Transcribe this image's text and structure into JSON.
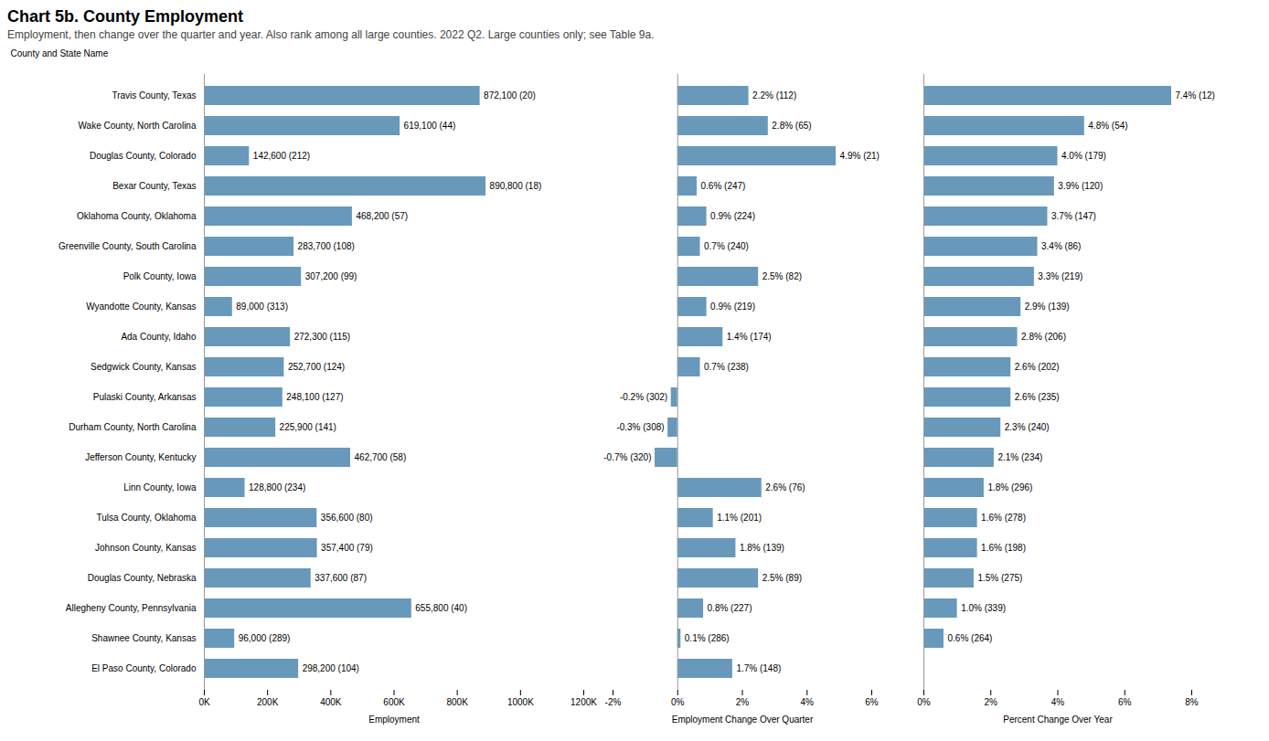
{
  "chart_data": [
    {
      "type": "bar",
      "title": "Chart 5b. County Employment",
      "subtitle": "Employment, then change over the quarter and year. Also rank among all large counties. 2022 Q2. Large counties only; see Table 9a.",
      "orientation": "horizontal",
      "x_label": "Employment",
      "y_label": "County and State Name",
      "categories": [
        "Travis County, Texas",
        "Wake County, North Carolina",
        "Douglas County, Colorado",
        "Bexar County, Texas",
        "Oklahoma County, Oklahoma",
        "Greenville County, South Carolina",
        "Polk County, Iowa",
        "Wyandotte County, Kansas",
        "Ada County, Idaho",
        "Sedgwick County, Kansas",
        "Pulaski County, Arkansas",
        "Durham County, North Carolina",
        "Jefferson County, Kentucky",
        "Linn County, Iowa",
        "Tulsa County, Oklahoma",
        "Johnson County, Kansas",
        "Douglas County, Nebraska",
        "Allegheny County, Pennsylvania",
        "Shawnee County, Kansas",
        "El Paso County, Colorado"
      ],
      "values": [
        872100,
        619100,
        142600,
        890800,
        468200,
        283700,
        307200,
        89000,
        272300,
        252700,
        248100,
        225900,
        462700,
        128800,
        356600,
        357400,
        337600,
        655800,
        96000,
        298200
      ],
      "value_labels": [
        "872,100 (20)",
        "619,100 (44)",
        "142,600 (212)",
        "890,800 (18)",
        "468,200 (57)",
        "283,700 (108)",
        "307,200 (99)",
        "89,000 (313)",
        "272,300 (115)",
        "252,700 (124)",
        "248,100 (127)",
        "225,900 (141)",
        "462,700 (58)",
        "128,800 (234)",
        "356,600 (80)",
        "357,400 (79)",
        "337,600 (87)",
        "655,800 (40)",
        "96,000 (289)",
        "298,200 (104)"
      ],
      "data_labels": true,
      "color": "#6899bb",
      "xlim": [
        0,
        1200000
      ],
      "xticks": [
        {
          "value": 0,
          "label": "0K"
        },
        {
          "value": 200000,
          "label": "200K"
        },
        {
          "value": 400000,
          "label": "400K"
        },
        {
          "value": 600000,
          "label": "600K"
        },
        {
          "value": 800000,
          "label": "800K"
        },
        {
          "value": 1000000,
          "label": "1000K"
        },
        {
          "value": 1200000,
          "label": "1200K"
        }
      ],
      "grid": false
    },
    {
      "type": "bar",
      "orientation": "horizontal",
      "x_label": "Employment Change Over Quarter",
      "tick_labels": "x",
      "categories": [
        "Travis County, Texas",
        "Wake County, North Carolina",
        "Douglas County, Colorado",
        "Bexar County, Texas",
        "Oklahoma County, Oklahoma",
        "Greenville County, South Carolina",
        "Polk County, Iowa",
        "Wyandotte County, Kansas",
        "Ada County, Idaho",
        "Sedgwick County, Kansas",
        "Pulaski County, Arkansas",
        "Durham County, North Carolina",
        "Jefferson County, Kentucky",
        "Linn County, Iowa",
        "Tulsa County, Oklahoma",
        "Johnson County, Kansas",
        "Douglas County, Nebraska",
        "Allegheny County, Pennsylvania",
        "Shawnee County, Kansas",
        "El Paso County, Colorado"
      ],
      "values": [
        2.2,
        2.8,
        4.9,
        0.6,
        0.9,
        0.7,
        2.5,
        0.9,
        1.4,
        0.7,
        -0.2,
        -0.3,
        -0.7,
        2.6,
        1.1,
        1.8,
        2.5,
        0.8,
        0.1,
        1.7
      ],
      "value_labels": [
        "2.2% (112)",
        "2.8% (65)",
        "4.9% (21)",
        "0.6% (247)",
        "0.9% (224)",
        "0.7% (240)",
        "2.5% (82)",
        "0.9% (219)",
        "1.4% (174)",
        "0.7% (238)",
        "-0.2% (302)",
        "-0.3% (308)",
        "-0.7% (320)",
        "2.6% (76)",
        "1.1% (201)",
        "1.8% (139)",
        "2.5% (89)",
        "0.8% (227)",
        "0.1% (286)",
        "1.7% (148)"
      ],
      "data_labels": true,
      "color": "#6899bb",
      "xlim": [
        -2,
        6
      ],
      "xticks": [
        {
          "value": -2,
          "label": "-2%"
        },
        {
          "value": 0,
          "label": "0%"
        },
        {
          "value": 2,
          "label": "2%"
        },
        {
          "value": 4,
          "label": "4%"
        },
        {
          "value": 6,
          "label": "6%"
        }
      ],
      "grid": false
    },
    {
      "type": "bar",
      "orientation": "horizontal",
      "x_label": "Percent Change Over Year",
      "tick_labels": "x",
      "categories": [
        "Travis County, Texas",
        "Wake County, North Carolina",
        "Douglas County, Colorado",
        "Bexar County, Texas",
        "Oklahoma County, Oklahoma",
        "Greenville County, South Carolina",
        "Polk County, Iowa",
        "Wyandotte County, Kansas",
        "Ada County, Idaho",
        "Sedgwick County, Kansas",
        "Pulaski County, Arkansas",
        "Durham County, North Carolina",
        "Jefferson County, Kentucky",
        "Linn County, Iowa",
        "Tulsa County, Oklahoma",
        "Johnson County, Kansas",
        "Douglas County, Nebraska",
        "Allegheny County, Pennsylvania",
        "Shawnee County, Kansas",
        "El Paso County, Colorado"
      ],
      "values": [
        7.4,
        4.8,
        4.0,
        3.9,
        3.7,
        3.4,
        3.3,
        2.9,
        2.8,
        2.6,
        2.6,
        2.3,
        2.1,
        1.8,
        1.6,
        1.6,
        1.5,
        1.0,
        0.6,
        null
      ],
      "value_labels": [
        "7.4% (12)",
        "4.8% (54)",
        "4.0% (179)",
        "3.9% (120)",
        "3.7% (147)",
        "3.4% (86)",
        "3.3% (219)",
        "2.9% (139)",
        "2.8% (206)",
        "2.6% (202)",
        "2.6% (235)",
        "2.3% (240)",
        "2.1% (234)",
        "1.8% (296)",
        "1.6% (278)",
        "1.6% (198)",
        "1.5% (275)",
        "1.0% (339)",
        "0.6% (264)",
        null
      ],
      "data_labels": true,
      "color": "#6899bb",
      "xlim": [
        0,
        8
      ],
      "xticks": [
        {
          "value": 0,
          "label": "0%"
        },
        {
          "value": 2,
          "label": "2%"
        },
        {
          "value": 4,
          "label": "4%"
        },
        {
          "value": 6,
          "label": "6%"
        },
        {
          "value": 8,
          "label": "8%"
        }
      ],
      "grid": false
    }
  ]
}
